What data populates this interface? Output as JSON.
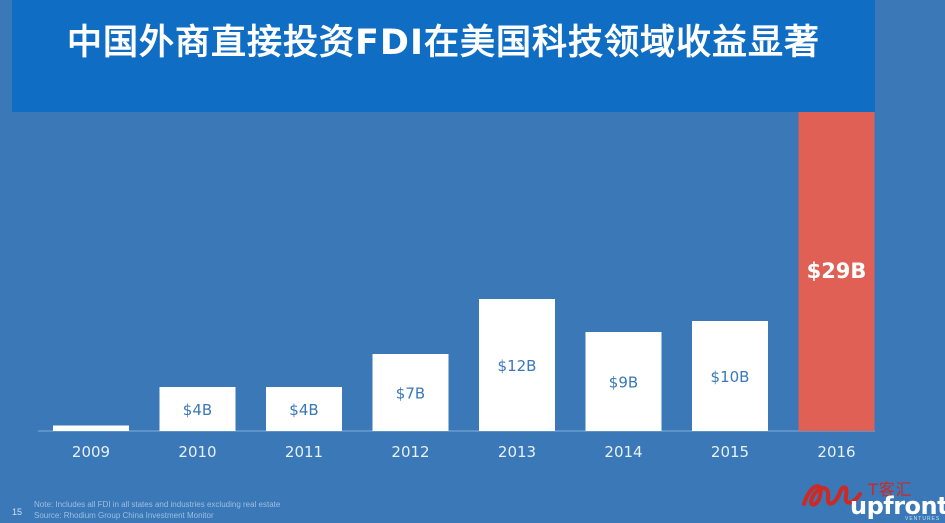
{
  "title": "中国外商直接投资FDI在美国科技领域收益显著",
  "page_number": "15",
  "notes": [
    "Note: Includes all FDI in all states and industries excluding real estate",
    "Source: Rhodium Group China Investment Monitor"
  ],
  "watermark_text": "T客汇",
  "brand_logo": "upfront",
  "brand_sub": "VENTURES",
  "colors": {
    "background": "#3a78b8",
    "banner": "#0f6ec4",
    "bar": "#ffffff",
    "highlight_bar": "#e06055",
    "bar_label": "#3a78b8",
    "highlight_label": "#ffffff",
    "axis_line": "#6a9ccf",
    "tick_label": "#e8f0f8"
  },
  "chart_data": {
    "type": "bar",
    "categories": [
      "2009",
      "2010",
      "2011",
      "2012",
      "2013",
      "2014",
      "2015",
      "2016"
    ],
    "values": [
      0.5,
      4,
      4,
      7,
      12,
      9,
      10,
      29
    ],
    "data_labels": [
      "",
      "$4B",
      "$4B",
      "$7B",
      "$12B",
      "$9B",
      "$10B",
      "$29B"
    ],
    "highlight_index": 7,
    "title": "",
    "xlabel": "",
    "ylabel": "",
    "ylim": [
      0,
      29
    ],
    "grid": false,
    "legend": "none"
  }
}
